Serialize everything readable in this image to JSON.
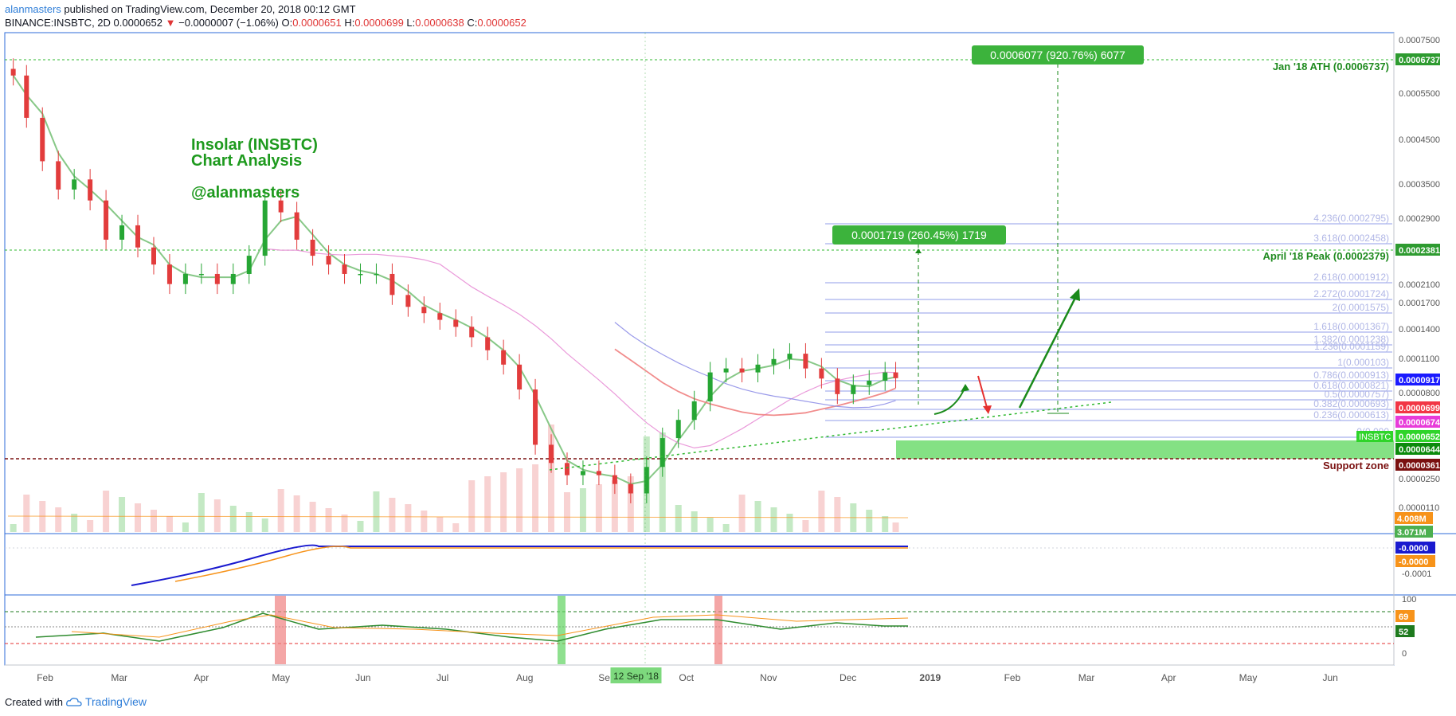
{
  "header": {
    "author": "alanmasters",
    "published_text": " published on TradingView.com, December 20, 2018 00:12 GMT",
    "symbol": "BINANCE:INSBTC, 2D",
    "last": "0.0000652",
    "change": "−0.0000007 (−1.06%)",
    "o_label": "O:",
    "o": "0.0000651",
    "h_label": "H:",
    "h": "0.0000699",
    "l_label": "L:",
    "l": "0.0000638",
    "c_label": "C:",
    "c": "0.0000652"
  },
  "footer": {
    "created_with": "Created with",
    "brand": "TradingView"
  },
  "annotations": {
    "title1": "Insolar (INSBTC)",
    "title2": "Chart Analysis",
    "handle": "@alanmasters",
    "ath_box": "0.0006077 (920.76%) 6077",
    "peak_box": "0.0001719 (260.45%) 1719",
    "ath_label": "Jan '18 ATH (0.0006737)",
    "peak_label": "April '18 Peak (0.0002379)",
    "support_label": "Support zone",
    "fib_labels": [
      "4.236(0.0002795)",
      "3.618(0.0002458)",
      "2.618(0.0001912)",
      "2.272(0.0001724)",
      "2(0.0001575)",
      "1.618(0.0001367)",
      "1.382(0.0001238)",
      "1.236(0.0001159)",
      "1(0.000103)",
      "0.786(0.0000913)",
      "0.618(0.0000821)",
      "0.5(0.0000757)",
      "0.382(0.0000693)",
      "0.236(0.0000613)",
      "0(0.000"
    ]
  },
  "price_axis": {
    "ticks": [
      "0.0007500",
      "0.0005500",
      "0.0004500",
      "0.0003500",
      "0.0002900",
      "0.0002100",
      "0.0001700",
      "0.0001400",
      "0.0001100",
      "0.0000800",
      "0.0000250",
      "0.0000110",
      "0.0000"
    ],
    "markers": [
      {
        "text": "0.0006737",
        "color": "#2e9b30"
      },
      {
        "text": "0.0002381",
        "color": "#2e9b30"
      },
      {
        "text": "0.0000917",
        "color": "#1a1aff"
      },
      {
        "text": "0.0000699",
        "color": "#f23645"
      },
      {
        "text": "0.0000674",
        "color": "#e83bd9"
      },
      {
        "text": "0.0000652",
        "color": "#2fd42a"
      },
      {
        "text": "0.0000644",
        "color": "#0b8a0b"
      },
      {
        "text": "0.0000361",
        "color": "#7a1010"
      },
      {
        "text": "4.008M",
        "color": "#f7931a"
      },
      {
        "text": "3.071M",
        "color": "#4caf50"
      }
    ],
    "insbtc_tag": "INSBTC"
  },
  "macd_axis": {
    "ticks": [
      "-0.0001"
    ],
    "markers": [
      {
        "text": "-0.0000",
        "color": "#1a1acf"
      },
      {
        "text": "-0.0000",
        "color": "#f7931a"
      }
    ]
  },
  "rsi_axis": {
    "ticks": [
      "100",
      "0"
    ],
    "markers": [
      {
        "text": "69",
        "color": "#f7931a"
      },
      {
        "text": "52",
        "color": "#1e7a1e"
      }
    ]
  },
  "time_axis": {
    "labels": [
      "Feb",
      "Mar",
      "Apr",
      "May",
      "Jun",
      "Jul",
      "Aug",
      "Sep",
      "Oct",
      "Nov",
      "Dec",
      "2019",
      "Feb",
      "Mar",
      "Apr",
      "May",
      "Jun"
    ],
    "crosshair_label": "12 Sep '18"
  },
  "colors": {
    "up": "#26a634",
    "down": "#e23c3c",
    "ema": "#7ac27a",
    "ma_pink": "#e88fd6",
    "ma_red": "#f08080",
    "ma_blue": "#9090e8",
    "fib": "#b6bdf0",
    "accent_green": "#3cb33c"
  },
  "chart_data": {
    "type": "line",
    "title": "Insolar (INSBTC)",
    "subtitle": "Chart Analysis",
    "xlabel": "",
    "ylabel": "",
    "log_scale": true,
    "ylim": [
      0.0,
      0.00075
    ],
    "series": [
      {
        "name": "INSBTC",
        "values": [
          {
            "x": "2018-01-20",
            "y": 0.0006
          },
          {
            "x": "2018-01-25",
            "y": 0.00044
          },
          {
            "x": "2018-01-31",
            "y": 0.00032
          },
          {
            "x": "2018-02-06",
            "y": 0.00026
          },
          {
            "x": "2018-02-12",
            "y": 0.00028
          },
          {
            "x": "2018-02-18",
            "y": 0.00024
          },
          {
            "x": "2018-02-24",
            "y": 0.00018
          },
          {
            "x": "2018-03-02",
            "y": 0.0002
          },
          {
            "x": "2018-03-08",
            "y": 0.00017
          },
          {
            "x": "2018-03-14",
            "y": 0.00015
          },
          {
            "x": "2018-03-20",
            "y": 0.00013
          },
          {
            "x": "2018-03-26",
            "y": 0.00014
          },
          {
            "x": "2018-04-01",
            "y": 0.00014
          },
          {
            "x": "2018-04-07",
            "y": 0.00013
          },
          {
            "x": "2018-04-13",
            "y": 0.00014
          },
          {
            "x": "2018-04-19",
            "y": 0.00016
          },
          {
            "x": "2018-04-25",
            "y": 0.00024
          },
          {
            "x": "2018-05-01",
            "y": 0.00022
          },
          {
            "x": "2018-05-07",
            "y": 0.00018
          },
          {
            "x": "2018-05-13",
            "y": 0.00016
          },
          {
            "x": "2018-05-19",
            "y": 0.00015
          },
          {
            "x": "2018-05-25",
            "y": 0.00014
          },
          {
            "x": "2018-05-31",
            "y": 0.00014
          },
          {
            "x": "2018-06-06",
            "y": 0.00014
          },
          {
            "x": "2018-06-12",
            "y": 0.00012
          },
          {
            "x": "2018-06-18",
            "y": 0.00011
          },
          {
            "x": "2018-06-24",
            "y": 0.000105
          },
          {
            "x": "2018-06-30",
            "y": 0.0001
          },
          {
            "x": "2018-07-06",
            "y": 9.5e-05
          },
          {
            "x": "2018-07-12",
            "y": 8.8e-05
          },
          {
            "x": "2018-07-18",
            "y": 8e-05
          },
          {
            "x": "2018-07-24",
            "y": 7.2e-05
          },
          {
            "x": "2018-07-30",
            "y": 6e-05
          },
          {
            "x": "2018-08-05",
            "y": 4e-05
          },
          {
            "x": "2018-08-11",
            "y": 3.5e-05
          },
          {
            "x": "2018-08-17",
            "y": 3.2e-05
          },
          {
            "x": "2018-08-23",
            "y": 3.3e-05
          },
          {
            "x": "2018-08-29",
            "y": 3.2e-05
          },
          {
            "x": "2018-09-04",
            "y": 3e-05
          },
          {
            "x": "2018-09-10",
            "y": 2.8e-05
          },
          {
            "x": "2018-09-16",
            "y": 3.4e-05
          },
          {
            "x": "2018-09-22",
            "y": 4.2e-05
          },
          {
            "x": "2018-09-28",
            "y": 4.8e-05
          },
          {
            "x": "2018-10-04",
            "y": 5.5e-05
          },
          {
            "x": "2018-10-10",
            "y": 6.8e-05
          },
          {
            "x": "2018-10-16",
            "y": 7e-05
          },
          {
            "x": "2018-10-22",
            "y": 6.8e-05
          },
          {
            "x": "2018-10-28",
            "y": 7.2e-05
          },
          {
            "x": "2018-11-03",
            "y": 7.5e-05
          },
          {
            "x": "2018-11-09",
            "y": 7.8e-05
          },
          {
            "x": "2018-11-15",
            "y": 7e-05
          },
          {
            "x": "2018-11-21",
            "y": 6.5e-05
          },
          {
            "x": "2018-11-27",
            "y": 5.8e-05
          },
          {
            "x": "2018-12-03",
            "y": 6.2e-05
          },
          {
            "x": "2018-12-09",
            "y": 6.4e-05
          },
          {
            "x": "2018-12-15",
            "y": 6.8e-05
          },
          {
            "x": "2018-12-19",
            "y": 6.52e-05
          }
        ]
      }
    ]
  }
}
